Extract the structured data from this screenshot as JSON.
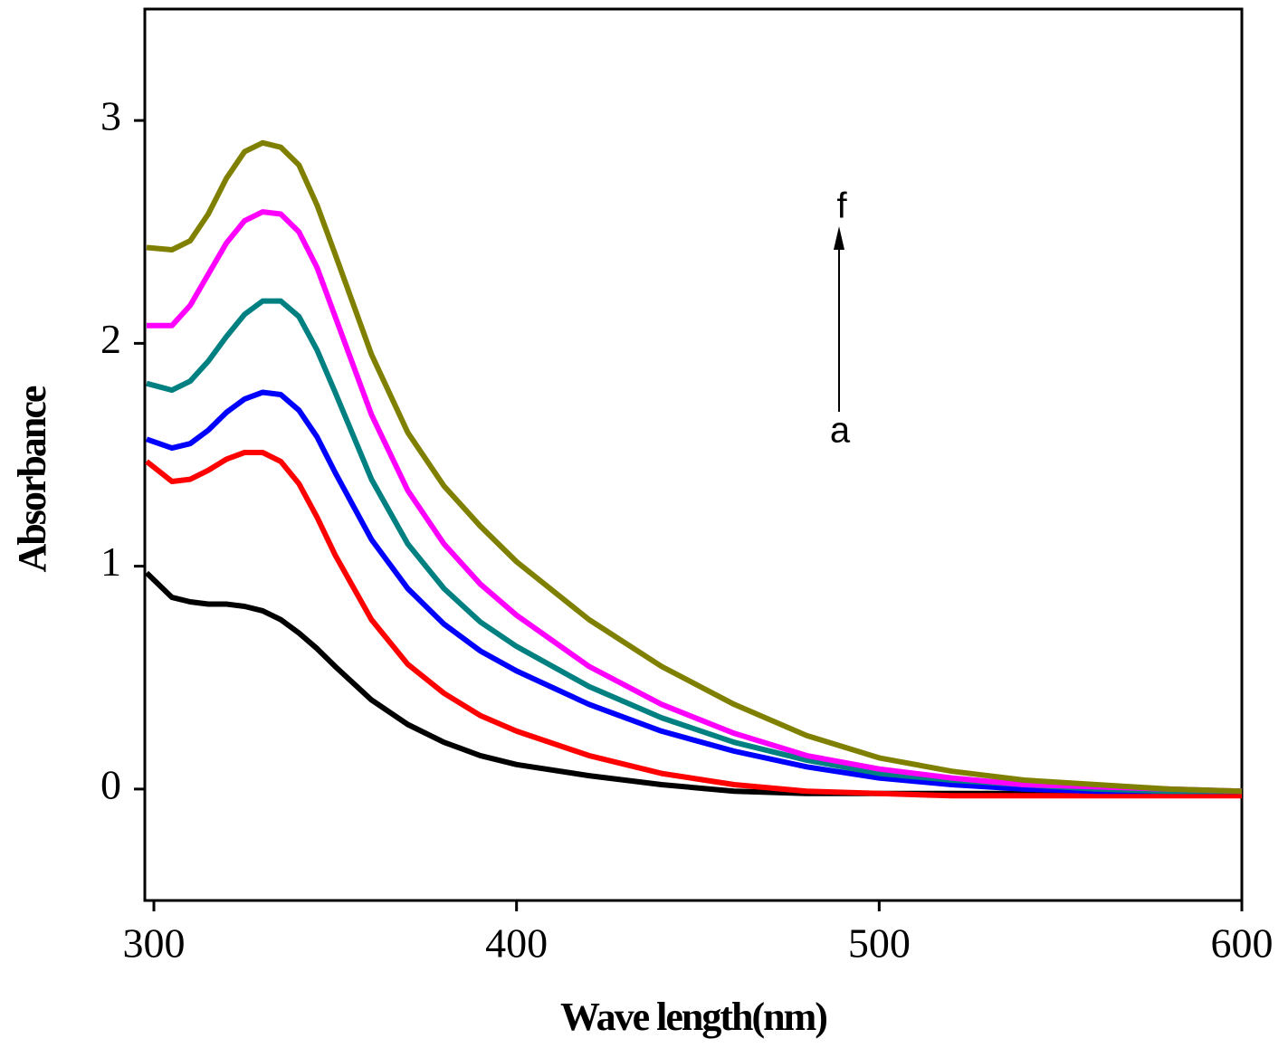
{
  "chart_data": {
    "type": "line",
    "x_label": "Wave length(nm)",
    "y_label": "Absorbance",
    "annotations": [
      "a",
      "f"
    ],
    "x": [
      298,
      305,
      310,
      315,
      320,
      325,
      330,
      335,
      340,
      345,
      350,
      360,
      370,
      380,
      390,
      400,
      420,
      440,
      460,
      480,
      500,
      520,
      540,
      560,
      580,
      600
    ],
    "series": [
      {
        "color": "#000000",
        "values": [
          0.97,
          0.86,
          0.84,
          0.83,
          0.83,
          0.82,
          0.8,
          0.76,
          0.7,
          0.63,
          0.55,
          0.4,
          0.29,
          0.21,
          0.15,
          0.11,
          0.06,
          0.02,
          -0.01,
          -0.02,
          -0.02,
          -0.02,
          -0.02,
          -0.02,
          -0.02,
          -0.02
        ]
      },
      {
        "color": "#ff0000",
        "values": [
          1.47,
          1.38,
          1.39,
          1.43,
          1.48,
          1.51,
          1.51,
          1.47,
          1.37,
          1.22,
          1.05,
          0.76,
          0.56,
          0.43,
          0.33,
          0.26,
          0.15,
          0.07,
          0.02,
          -0.01,
          -0.02,
          -0.03,
          -0.03,
          -0.03,
          -0.03,
          -0.03
        ]
      },
      {
        "color": "#0000ff",
        "values": [
          1.57,
          1.53,
          1.55,
          1.61,
          1.69,
          1.75,
          1.78,
          1.77,
          1.7,
          1.58,
          1.42,
          1.12,
          0.9,
          0.74,
          0.62,
          0.53,
          0.38,
          0.26,
          0.17,
          0.1,
          0.05,
          0.02,
          0.0,
          -0.01,
          -0.01,
          -0.01
        ]
      },
      {
        "color": "#008080",
        "values": [
          1.82,
          1.79,
          1.83,
          1.92,
          2.03,
          2.13,
          2.19,
          2.19,
          2.12,
          1.97,
          1.78,
          1.39,
          1.1,
          0.9,
          0.75,
          0.64,
          0.46,
          0.32,
          0.21,
          0.13,
          0.07,
          0.04,
          0.02,
          0.0,
          -0.01,
          -0.01
        ]
      },
      {
        "color": "#ff00ff",
        "values": [
          2.08,
          2.08,
          2.17,
          2.31,
          2.45,
          2.55,
          2.59,
          2.58,
          2.5,
          2.34,
          2.12,
          1.68,
          1.34,
          1.1,
          0.92,
          0.78,
          0.55,
          0.38,
          0.25,
          0.15,
          0.09,
          0.05,
          0.02,
          0.01,
          0.0,
          -0.01
        ]
      },
      {
        "color": "#808000",
        "values": [
          2.43,
          2.42,
          2.46,
          2.58,
          2.74,
          2.86,
          2.9,
          2.88,
          2.8,
          2.62,
          2.4,
          1.95,
          1.6,
          1.36,
          1.18,
          1.02,
          0.76,
          0.55,
          0.38,
          0.24,
          0.14,
          0.08,
          0.04,
          0.02,
          0.0,
          -0.01
        ]
      }
    ],
    "xlim": [
      297.5,
      600
    ],
    "xticks": [
      300,
      400,
      500,
      600
    ],
    "ylim": [
      -0.5,
      3.5
    ],
    "yticks": [
      0,
      1,
      2,
      3
    ]
  }
}
